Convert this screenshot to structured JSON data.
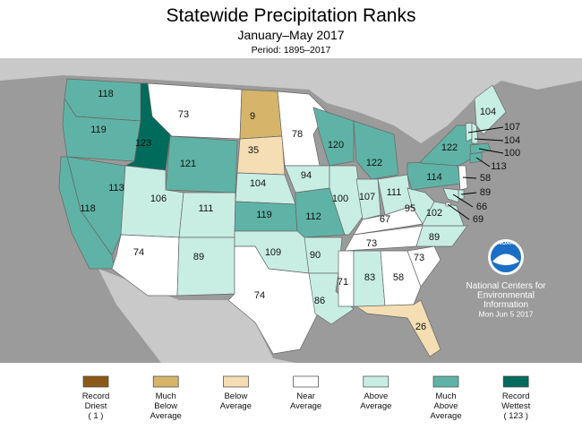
{
  "header": {
    "title": "Statewide Precipitation Ranks",
    "subtitle": "January–May 2017",
    "period": "Period: 1895–2017"
  },
  "regions": [
    {
      "value": 118,
      "color": "#5fb3a6"
    },
    {
      "value": 119,
      "color": "#5fb3a6"
    },
    {
      "value": 123,
      "color": "#006b5a"
    },
    {
      "value": 73,
      "color": "#ffffff"
    },
    {
      "value": 121,
      "color": "#5fb3a6"
    },
    {
      "value": 113,
      "color": "#5fb3a6"
    },
    {
      "value": 118,
      "color": "#5fb3a6"
    },
    {
      "value": 106,
      "color": "#c8eee4"
    },
    {
      "value": 111,
      "color": "#c8eee4"
    },
    {
      "value": 74,
      "color": "#ffffff"
    },
    {
      "value": 89,
      "color": "#c8eee4"
    },
    {
      "value": 9,
      "color": "#d6b46a"
    },
    {
      "value": 35,
      "color": "#f5deb3"
    },
    {
      "value": 104,
      "color": "#c8eee4"
    },
    {
      "value": 119,
      "color": "#5fb3a6"
    },
    {
      "value": 109,
      "color": "#c8eee4"
    },
    {
      "value": 74,
      "color": "#ffffff"
    },
    {
      "value": 78,
      "color": "#ffffff"
    },
    {
      "value": 94,
      "color": "#c8eee4"
    },
    {
      "value": 112,
      "color": "#5fb3a6"
    },
    {
      "value": 90,
      "color": "#c8eee4"
    },
    {
      "value": 86,
      "color": "#c8eee4"
    },
    {
      "value": 120,
      "color": "#5fb3a6"
    },
    {
      "value": 100,
      "color": "#c8eee4"
    },
    {
      "value": 122,
      "color": "#5fb3a6"
    },
    {
      "value": 107,
      "color": "#c8eee4"
    },
    {
      "value": 111,
      "color": "#c8eee4"
    },
    {
      "value": 67,
      "color": "#ffffff"
    },
    {
      "value": 73,
      "color": "#ffffff"
    },
    {
      "value": 71,
      "color": "#ffffff"
    },
    {
      "value": 83,
      "color": "#c8eee4"
    },
    {
      "value": 58,
      "color": "#ffffff"
    },
    {
      "value": 26,
      "color": "#f5deb3"
    },
    {
      "value": 73,
      "color": "#ffffff"
    },
    {
      "value": 89,
      "color": "#c8eee4"
    },
    {
      "value": 102,
      "color": "#c8eee4"
    },
    {
      "value": 95,
      "color": "#c8eee4"
    },
    {
      "value": 114,
      "color": "#5fb3a6"
    },
    {
      "value": 122,
      "color": "#5fb3a6"
    },
    {
      "value": 104,
      "color": "#c8eee4"
    },
    {
      "value": 107,
      "color": "#c8eee4"
    },
    {
      "value": 104,
      "color": "#c8eee4"
    },
    {
      "value": 100,
      "color": "#5fb3a6"
    },
    {
      "value": 113,
      "color": "#5fb3a6"
    },
    {
      "value": 58,
      "color": "#ffffff"
    },
    {
      "value": 89,
      "color": "#c8eee4"
    },
    {
      "value": 66,
      "color": "#c8eee4"
    },
    {
      "value": 69,
      "color": "#ffffff"
    }
  ],
  "legend": [
    {
      "label": [
        "Record",
        "Driest",
        "( 1 )"
      ],
      "color": "#8b5a1a"
    },
    {
      "label": [
        "Much",
        "Below",
        "Average"
      ],
      "color": "#d6b46a"
    },
    {
      "label": [
        "Below",
        "Average"
      ],
      "color": "#f5deb3"
    },
    {
      "label": [
        "Near",
        "Average"
      ],
      "color": "#ffffff"
    },
    {
      "label": [
        "Above",
        "Average"
      ],
      "color": "#c8eee4"
    },
    {
      "label": [
        "Much",
        "Above",
        "Average"
      ],
      "color": "#5fb3a6"
    },
    {
      "label": [
        "Record",
        "Wettest",
        "( 123 )"
      ],
      "color": "#006b5a"
    }
  ],
  "logo": "NOAA",
  "credit": [
    "National Centers for",
    "Environmental",
    "Information",
    "Mon Jun  5 2017"
  ]
}
